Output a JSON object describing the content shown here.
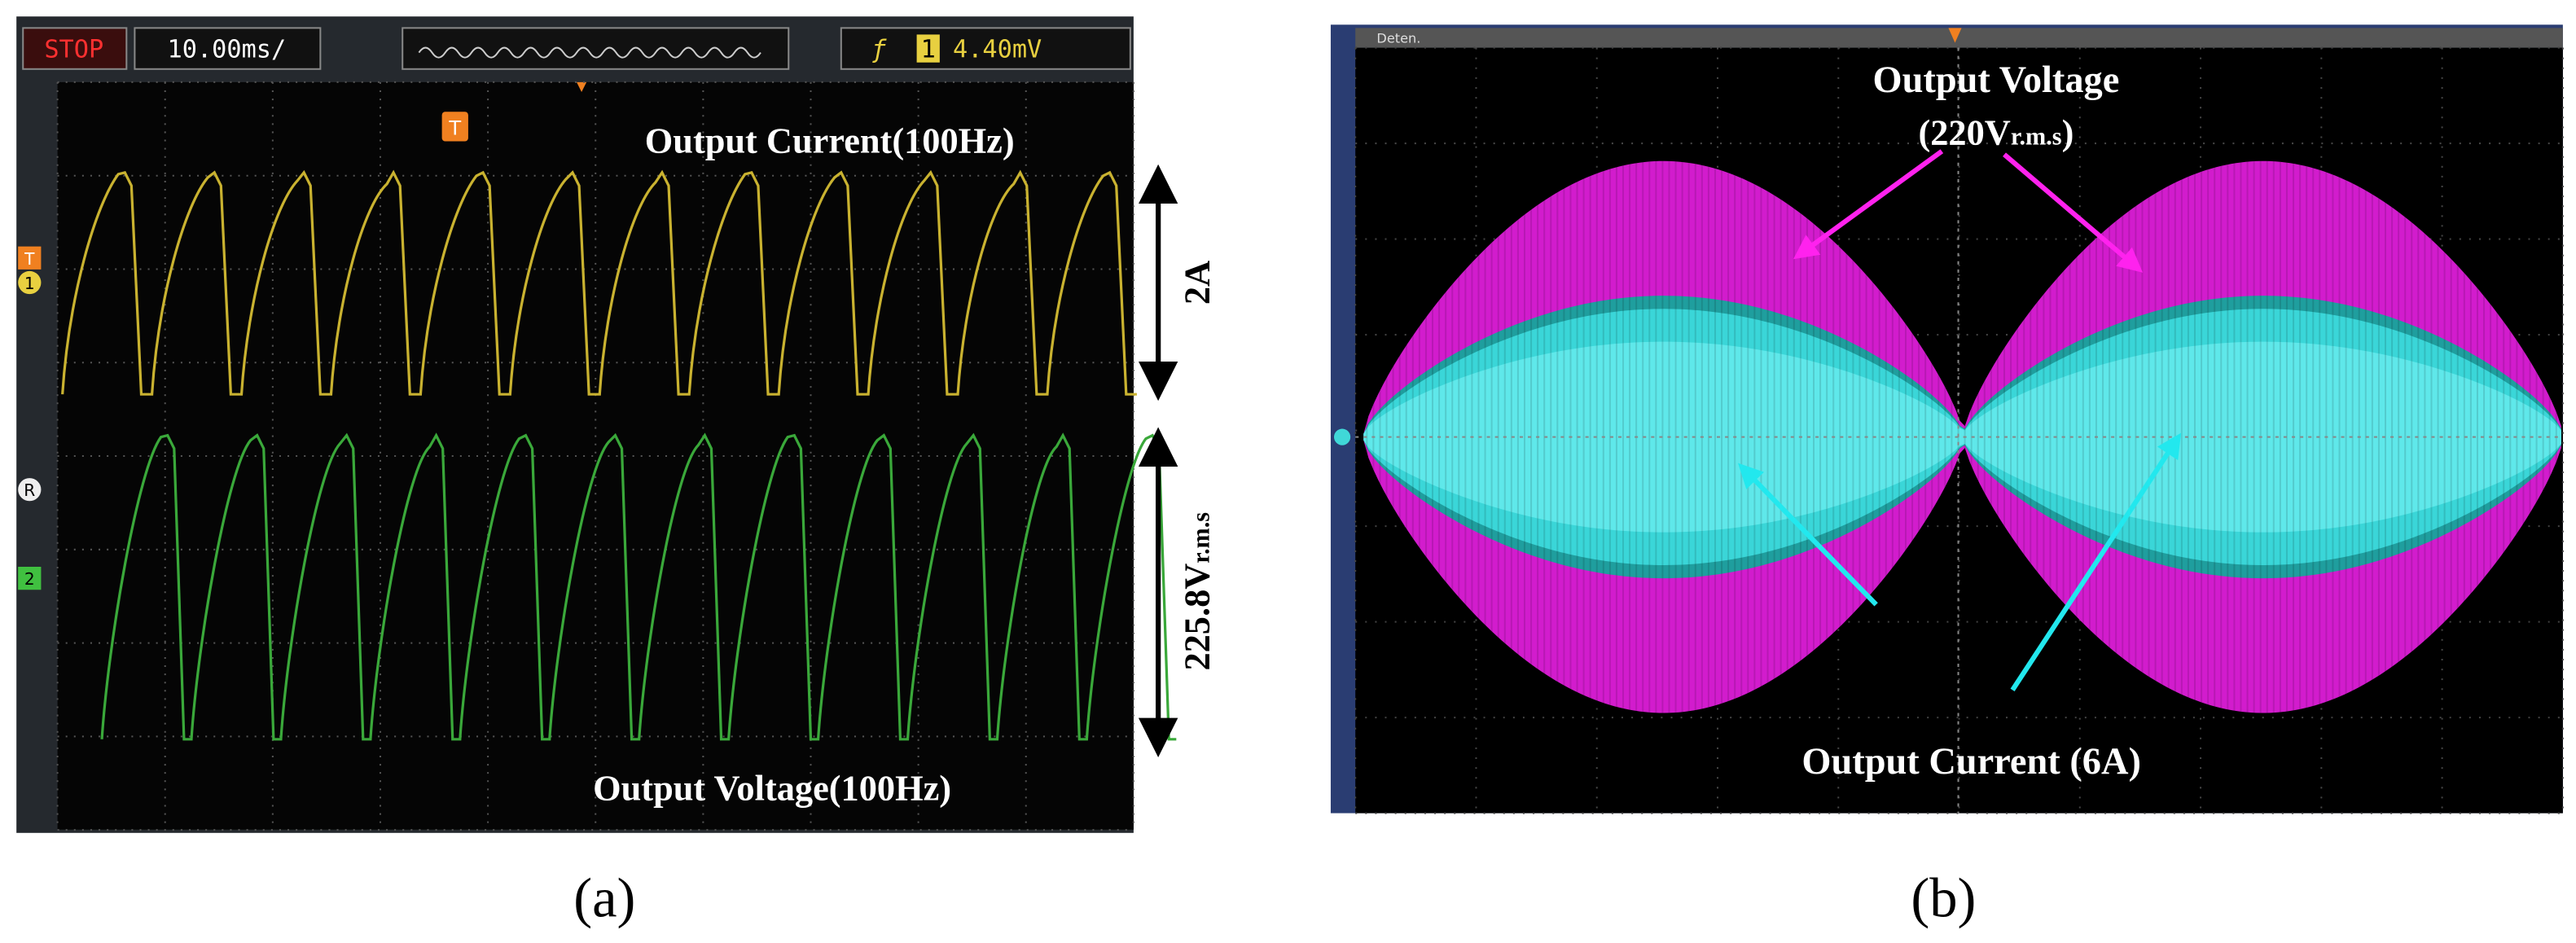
{
  "panel_a": {
    "status": "STOP",
    "timebase": "10.00ms/",
    "trigger_level": "4.40mV",
    "trigger_marker": "T",
    "channel_markers": [
      "1",
      "R",
      "2"
    ],
    "current_label": "Output Current(100Hz)",
    "voltage_label": "Output Voltage(100Hz)",
    "current_scale": "2A",
    "voltage_scale": {
      "value": "225.8V",
      "subscript": "r.m.s"
    },
    "caption": "(a)"
  },
  "panel_b": {
    "menu": "Deten.",
    "voltage_label": "Output Voltage",
    "voltage_rating": {
      "prefix": "(220V",
      "subscript": "r.m.s",
      "suffix": ")"
    },
    "current_label": "Output Current (6A)",
    "caption": "(b)"
  }
}
